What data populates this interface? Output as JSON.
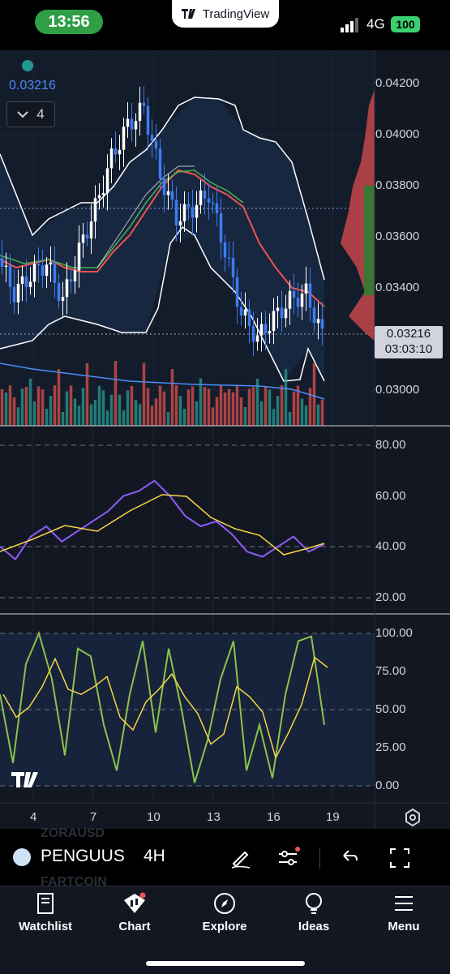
{
  "status_bar": {
    "time": "13:56",
    "app_badge": "TradingView",
    "network": "4G",
    "battery": "100"
  },
  "chart": {
    "overlay_value": "0.03216",
    "collapse_count": "4",
    "price_axis": [
      "0.04200",
      "0.04000",
      "0.03800",
      "0.03600",
      "0.03400",
      "0.03000"
    ],
    "current_price": "0.03216",
    "countdown": "03:03:10",
    "rsi_axis": [
      "80.00",
      "60.00",
      "40.00",
      "20.00"
    ],
    "stoch_axis": [
      "100.00",
      "75.00",
      "50.00",
      "25.00",
      "0.00"
    ],
    "date_axis": [
      "4",
      "7",
      "10",
      "13",
      "16",
      "19"
    ],
    "colors": {
      "up": "#26a69a",
      "down": "#ef5350",
      "candle_blue": "#3d7bf2",
      "band": "#ffffff",
      "rsi": "#8b5cf6",
      "signal": "#f5d547",
      "accent": "#2962ff"
    }
  },
  "chart_data": [
    {
      "type": "line",
      "title": "",
      "x_ticks": [
        "4",
        "7",
        "10",
        "13",
        "16",
        "19"
      ],
      "ylim": [
        0.0285,
        0.0435
      ],
      "y_ticks": [
        0.042,
        0.04,
        0.038,
        0.036,
        0.034,
        0.03
      ],
      "series": [
        {
          "values": [
            0.0352,
            0.0338,
            0.0345,
            0.035,
            0.0335,
            0.0355,
            0.0372,
            0.0392,
            0.0405,
            0.0412,
            0.0385,
            0.0368,
            0.0372,
            0.0378,
            0.0355,
            0.033,
            0.032,
            0.0328,
            0.0335,
            0.0338,
            0.0321
          ]
        }
      ],
      "last_price": 0.03216
    },
    {
      "type": "line",
      "ylim": [
        0,
        100
      ],
      "y_ticks": [
        80,
        60,
        40,
        20
      ],
      "series": [
        {
          "values": [
            40,
            35,
            44,
            48,
            42,
            46,
            50,
            54,
            60,
            62,
            66,
            60,
            52,
            48,
            50,
            45,
            38,
            36,
            40,
            44,
            38,
            41
          ]
        }
      ]
    },
    {
      "type": "line",
      "ylim": [
        0,
        100
      ],
      "y_ticks": [
        100,
        75,
        50,
        25,
        0
      ],
      "series": [
        {
          "values": [
            60,
            15,
            80,
            100,
            70,
            20,
            90,
            85,
            40,
            10,
            60,
            95,
            35,
            90,
            50,
            2,
            30,
            70,
            95,
            10,
            40,
            5,
            60,
            95,
            98,
            40
          ]
        }
      ]
    }
  ],
  "symbol_bar": {
    "ghost_top": "ZORAUSD",
    "symbol": "PENGUUS",
    "interval": "4H",
    "ghost_bottom": "FARTCOIN"
  },
  "tabs": [
    {
      "label": "Watchlist",
      "icon": "book-icon"
    },
    {
      "label": "Chart",
      "icon": "chart-icon"
    },
    {
      "label": "Explore",
      "icon": "compass-icon"
    },
    {
      "label": "Ideas",
      "icon": "bulb-icon"
    },
    {
      "label": "Menu",
      "icon": "menu-icon"
    }
  ]
}
